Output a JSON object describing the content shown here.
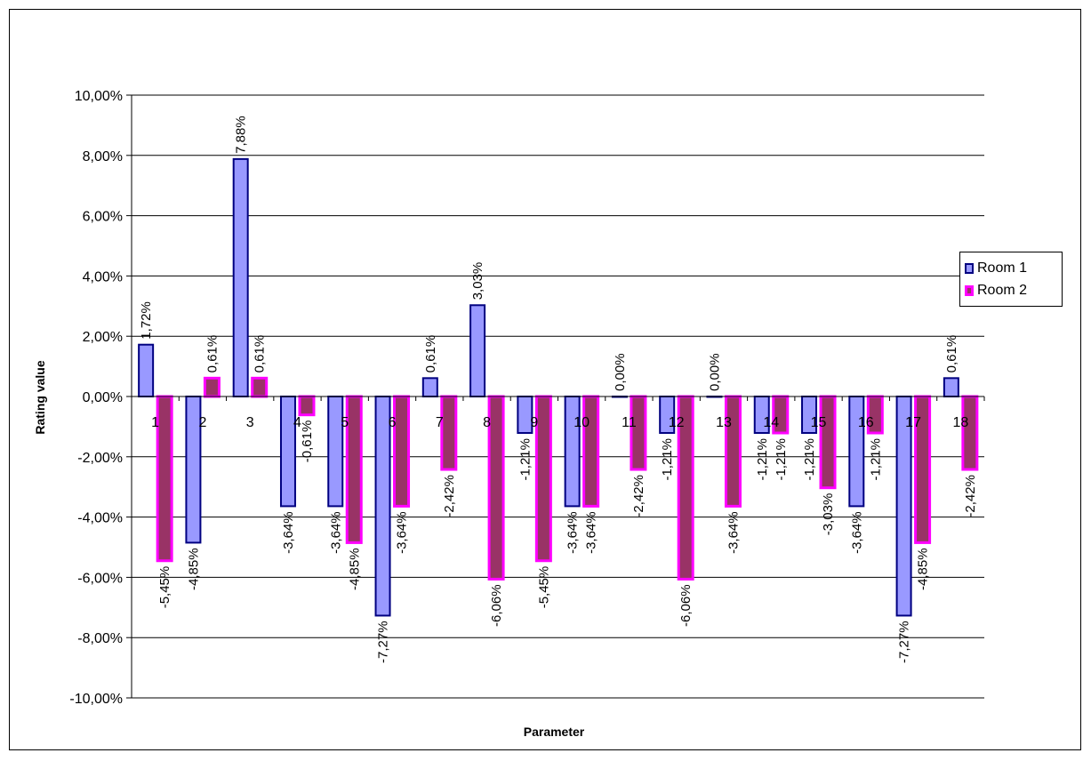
{
  "chart_data": {
    "type": "bar",
    "title": "",
    "xlabel": "Parameter",
    "ylabel": "Rating value",
    "ylim": [
      -0.1,
      0.1
    ],
    "ytick_step": 0.02,
    "yticks": [
      "-10,00%",
      "-8,00%",
      "-6,00%",
      "-4,00%",
      "-2,00%",
      "0,00%",
      "2,00%",
      "4,00%",
      "6,00%",
      "8,00%",
      "10,00%"
    ],
    "grid": "horizontal",
    "legend_position": "right",
    "categories": [
      "1",
      "2",
      "3",
      "4",
      "5",
      "6",
      "7",
      "8",
      "9",
      "10",
      "11",
      "12",
      "13",
      "14",
      "15",
      "16",
      "17",
      "18"
    ],
    "series": [
      {
        "name": "Room 1",
        "fill": "#9999ff",
        "stroke": "#000080",
        "values": [
          0.0172,
          -0.0485,
          0.0788,
          -0.0364,
          -0.0364,
          -0.0727,
          0.0061,
          0.0303,
          -0.0121,
          -0.0364,
          0.0,
          -0.0121,
          0.0,
          -0.0121,
          -0.0121,
          -0.0364,
          -0.0727,
          0.0061
        ],
        "labels": [
          "1,72%",
          "-4,85%",
          "7,88%",
          "-3,64%",
          "-3,64%",
          "-7,27%",
          "0,61%",
          "3,03%",
          "-1,21%",
          "-3,64%",
          "0,00%",
          "-1,21%",
          "0,00%",
          "-1,21%",
          "-1,21%",
          "-3,64%",
          "-7,27%",
          "0,61%"
        ]
      },
      {
        "name": "Room 2",
        "fill": "#993366",
        "stroke": "#ff00ff",
        "values": [
          -0.0545,
          0.0061,
          0.0061,
          -0.0061,
          -0.0485,
          -0.0364,
          -0.0242,
          -0.0606,
          -0.0545,
          -0.0364,
          -0.0242,
          -0.0606,
          -0.0364,
          -0.0121,
          -0.0303,
          -0.0121,
          -0.0485,
          -0.0242
        ],
        "labels": [
          "-5,45%",
          "0,61%",
          "0,61%",
          "-0,61%",
          "-4,85%",
          "-3,64%",
          "-2,42%",
          "-6,06%",
          "-5,45%",
          "-3,64%",
          "-2,42%",
          "-6,06%",
          "-3,64%",
          "-1,21%",
          "-3,03%",
          "-1,21%",
          "-4,85%",
          "-2,42%"
        ]
      }
    ]
  }
}
